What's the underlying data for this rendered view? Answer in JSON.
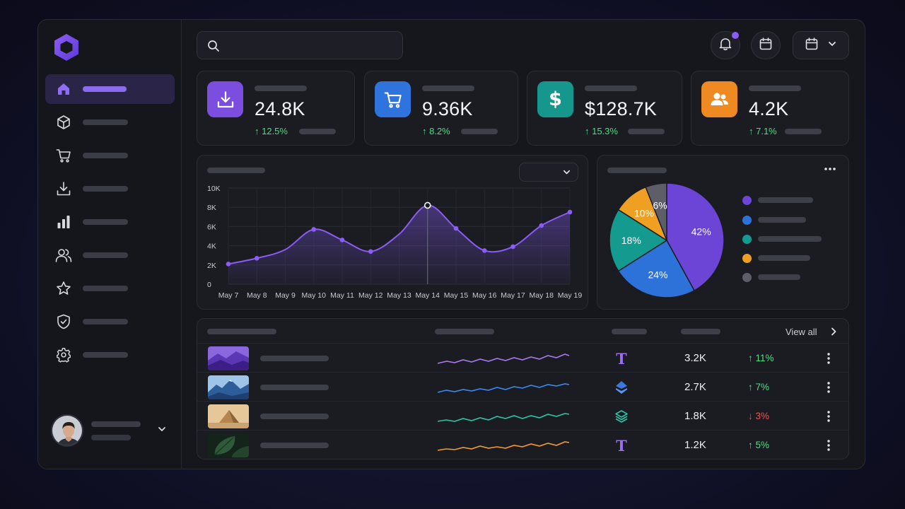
{
  "colors": {
    "accent": "#8b5cf6",
    "positive": "#4ade80",
    "negative": "#f05252",
    "purple": "#6d45d6",
    "blue": "#2d72d9",
    "teal": "#149a8f",
    "orange": "#ef8a22",
    "gray": "#5c5f68"
  },
  "sidebar": {
    "logo_icon": "hexagon-logo-icon",
    "items": [
      {
        "icon": "home-icon",
        "active": true
      },
      {
        "icon": "box-icon"
      },
      {
        "icon": "cart-icon"
      },
      {
        "icon": "download-icon"
      },
      {
        "icon": "bar-chart-icon"
      },
      {
        "icon": "users-icon"
      },
      {
        "icon": "star-icon"
      },
      {
        "icon": "shield-check-icon"
      },
      {
        "icon": "gear-icon"
      }
    ],
    "user": {
      "avatar": "user-avatar",
      "menu_icon": "chevron-down-icon"
    }
  },
  "header": {
    "search_placeholder": "",
    "notification_icon": "bell-icon",
    "calendar_icon": "calendar-icon",
    "date_dropdown_icon": "calendar-chevron-icon"
  },
  "stats": [
    {
      "icon": "download-icon",
      "value": "24.8K",
      "change": "↑ 12.5%",
      "color": "#7c4ee0"
    },
    {
      "icon": "cart-icon",
      "value": "9.36K",
      "change": "↑ 8.2%",
      "color": "#2f74dd"
    },
    {
      "icon": "dollar-icon",
      "value": "$128.7K",
      "change": "↑ 15.3%",
      "color": "#15978d"
    },
    {
      "icon": "users-icon",
      "value": "4.2K",
      "change": "↑ 7.1%",
      "color": "#ef8a22"
    }
  ],
  "line_chart": {
    "y_ticks": [
      "10K",
      "8K",
      "6K",
      "4K",
      "2K",
      "0"
    ],
    "dates": [
      "May 7",
      "May 8",
      "May 9",
      "May 10",
      "May 11",
      "May 12",
      "May 13",
      "May 14",
      "May 15",
      "May 16",
      "May 17",
      "May 18",
      "May 19"
    ],
    "highlighted": "May 14"
  },
  "chart_data": [
    {
      "type": "line",
      "x": [
        "May 7",
        "May 8",
        "May 9",
        "May 10",
        "May 11",
        "May 12",
        "May 13",
        "May 14",
        "May 15",
        "May 16",
        "May 17",
        "May 18",
        "May 19"
      ],
      "series": [
        {
          "values": [
            2100,
            2700,
            null,
            5700,
            4600,
            3400,
            null,
            8200,
            5800,
            3500,
            3900,
            6100,
            7500
          ]
        }
      ],
      "ylim": [
        0,
        10000
      ],
      "grid": true
    },
    {
      "type": "pie",
      "values": [
        42,
        24,
        18,
        10,
        6
      ],
      "labels": [
        "42%",
        "24%",
        "18%",
        "10%",
        "6%"
      ],
      "colors": [
        "#6d45d6",
        "#2d72d9",
        "#149a8f",
        "#ef9f22",
        "#5c5f68"
      ]
    }
  ],
  "table": {
    "view_all": "View all",
    "view_all_icon": "chevron-right-icon",
    "rows": [
      {
        "thumb": "purple-mountain-thumb",
        "spark_color": "#a678f0",
        "type_icon": "text-t-icon",
        "value": "3.2K",
        "change": "↑ 11%",
        "trend": "up"
      },
      {
        "thumb": "blue-mountain-thumb",
        "spark_color": "#3b86f0",
        "type_icon": "stack-layers-icon",
        "value": "2.7K",
        "change": "↑ 7%",
        "trend": "up"
      },
      {
        "thumb": "desert-pyramid-thumb",
        "spark_color": "#2cc3a7",
        "type_icon": "layers-icon",
        "value": "1.8K",
        "change": "↓ 3%",
        "trend": "down"
      },
      {
        "thumb": "green-leaf-thumb",
        "spark_color": "#f39a2b",
        "type_icon": "text-t-icon",
        "value": "1.2K",
        "change": "↑ 5%",
        "trend": "up"
      }
    ]
  }
}
